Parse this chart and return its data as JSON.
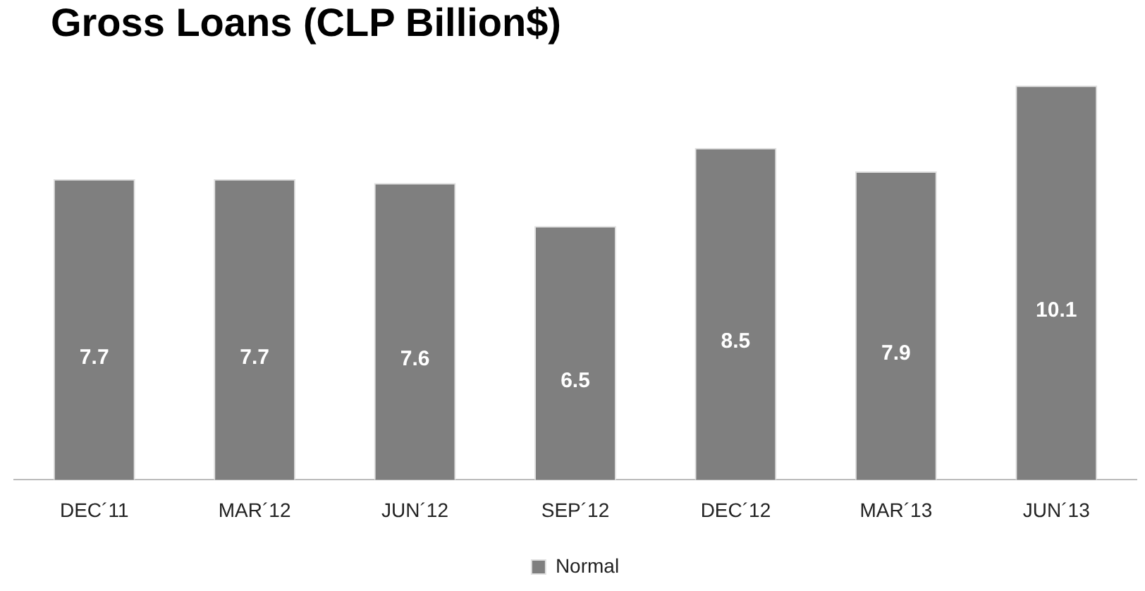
{
  "chart_data": {
    "type": "bar",
    "title": "Gross Loans (CLP Billion$)",
    "categories": [
      "DEC´11",
      "MAR´12",
      "JUN´12",
      "SEP´12",
      "DEC´12",
      "MAR´13",
      "JUN´13"
    ],
    "series": [
      {
        "name": "Normal",
        "color": "#7f7f7f",
        "values": [
          7.7,
          7.7,
          7.6,
          6.5,
          8.5,
          7.9,
          10.1
        ]
      }
    ],
    "tick_labels": "x",
    "data_labels": true,
    "grid": false,
    "legend": "bottom"
  }
}
